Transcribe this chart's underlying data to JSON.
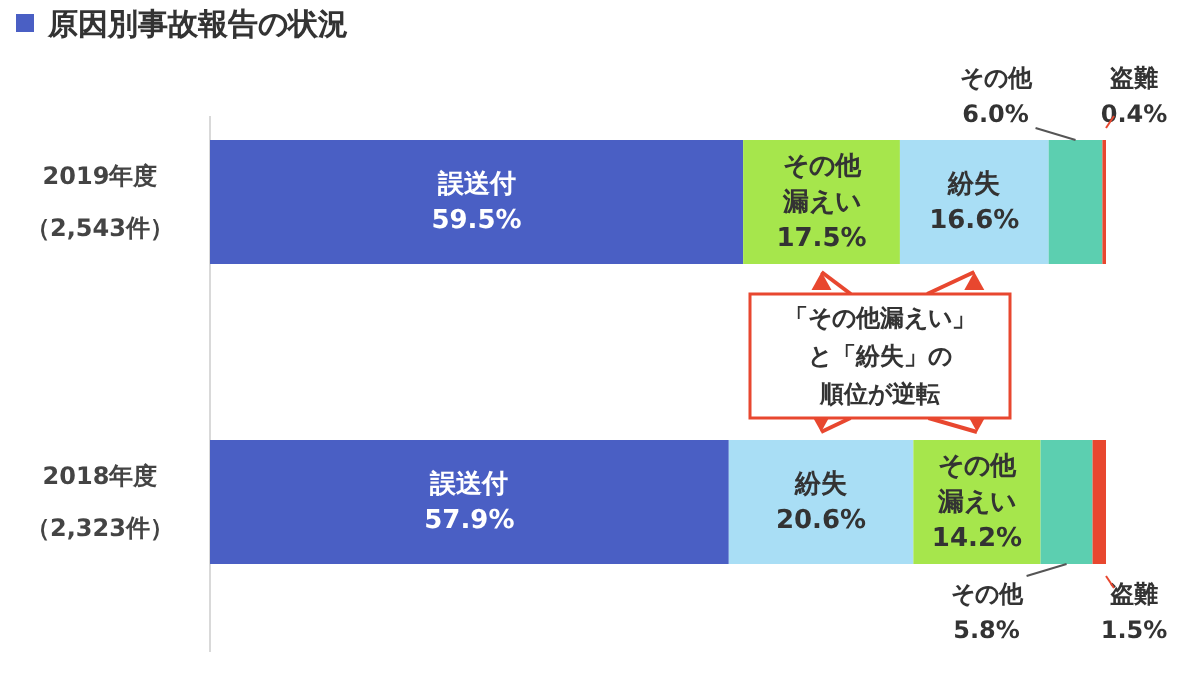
{
  "chart_data": {
    "type": "bar",
    "orientation": "horizontal",
    "stacked": true,
    "title": "原因別事故報告の状況",
    "categories": [
      "2019年度（2,543件）",
      "2018年度（2,323件）"
    ],
    "xlim": [
      0,
      100
    ],
    "tick_labels": false,
    "series": [
      {
        "colors": [
          "#4a5fc4",
          "#4a5fc4"
        ],
        "values": [
          59.5,
          57.9
        ],
        "value_labels": [
          "誤送付59.5%",
          "誤送付57.9%"
        ]
      },
      {
        "colors": [
          "#a6e64c",
          "#a9def5"
        ],
        "values": [
          17.5,
          20.6
        ],
        "value_labels": [
          "その他漏えい17.5%",
          "紛失20.6%"
        ]
      },
      {
        "colors": [
          "#a9def5",
          "#a6e64c"
        ],
        "values": [
          16.6,
          14.2
        ],
        "value_labels": [
          "紛失16.6%",
          "その他漏えい14.2%"
        ]
      },
      {
        "colors": [
          "#5ccfb0",
          "#5ccfb0"
        ],
        "values": [
          6.0,
          5.8
        ],
        "value_labels": [
          "その他6.0%",
          "その他5.8%"
        ]
      },
      {
        "colors": [
          "#e8472f",
          "#e8472f"
        ],
        "values": [
          0.4,
          1.5
        ],
        "value_labels": [
          "盗難0.4%",
          "盗難1.5%"
        ]
      }
    ],
    "annotations": [
      "「その他漏えい」と「紛失」の順位が逆転"
    ]
  }
}
